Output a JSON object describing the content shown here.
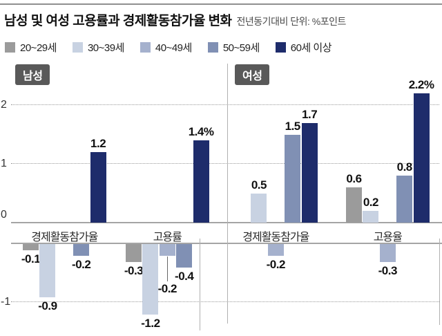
{
  "header": {
    "title": "남성 및 여성 고용률과 경제활동참가율 변화",
    "subtitle": "전년동기대비 단위: %포인트"
  },
  "chart_data": {
    "type": "bar",
    "comparison": "전년동기대비",
    "unit": "%포인트",
    "age_groups": [
      "20~29세",
      "30~39세",
      "40~49세",
      "50~59세",
      "60세 이상"
    ],
    "age_colors": {
      "20~29세": "#9b9b9b",
      "30~39세": "#c8d2e2",
      "40~49세": "#a5b1cd",
      "50~59세": "#8090b4",
      "60세 이상": "#1e2c6b"
    },
    "ylim": [
      -1.5,
      2.5
    ],
    "yticks": [
      {
        "v": 2,
        "label": "2"
      },
      {
        "v": 1,
        "label": "1"
      },
      {
        "v": 0,
        "label": "0"
      },
      {
        "v": -1,
        "label": "-1"
      }
    ],
    "panels": [
      {
        "label": "남성",
        "groups": [
          {
            "label": "경제활동참가율",
            "bars": [
              {
                "age": "20~29세",
                "value": -0.1,
                "display": "-0.1"
              },
              {
                "age": "30~39세",
                "value": -0.9,
                "display": "-0.9"
              },
              {
                "age": "40~49세",
                "value": null,
                "display": ""
              },
              {
                "age": "50~59세",
                "value": -0.2,
                "display": "-0.2"
              },
              {
                "age": "60세 이상",
                "value": 1.2,
                "display": "1.2"
              }
            ]
          },
          {
            "label": "고용률",
            "bars": [
              {
                "age": "20~29세",
                "value": -0.3,
                "display": "-0.3"
              },
              {
                "age": "30~39세",
                "value": -1.2,
                "display": "-1.2"
              },
              {
                "age": "40~49세",
                "value": -0.2,
                "display": "-0.2",
                "leader": true
              },
              {
                "age": "50~59세",
                "value": -0.4,
                "display": "-0.4"
              },
              {
                "age": "60세 이상",
                "value": 1.4,
                "display": "1.4%"
              }
            ]
          }
        ]
      },
      {
        "label": "여성",
        "groups": [
          {
            "label": "경제활동참가율",
            "bars": [
              {
                "age": "20~29세",
                "value": null,
                "display": ""
              },
              {
                "age": "30~39세",
                "value": 0.5,
                "display": "0.5"
              },
              {
                "age": "40~49세",
                "value": -0.2,
                "display": "-0.2"
              },
              {
                "age": "50~59세",
                "value": 1.5,
                "display": "1.5"
              },
              {
                "age": "60세 이상",
                "value": 1.7,
                "display": "1.7"
              }
            ]
          },
          {
            "label": "고용율",
            "bars": [
              {
                "age": "20~29세",
                "value": 0.6,
                "display": "0.6"
              },
              {
                "age": "30~39세",
                "value": 0.2,
                "display": "0.2"
              },
              {
                "age": "40~49세",
                "value": -0.3,
                "display": "-0.3"
              },
              {
                "age": "50~59세",
                "value": 0.8,
                "display": "0.8"
              },
              {
                "age": "60세 이상",
                "value": 2.2,
                "display": "2.2%"
              }
            ]
          }
        ]
      }
    ]
  }
}
